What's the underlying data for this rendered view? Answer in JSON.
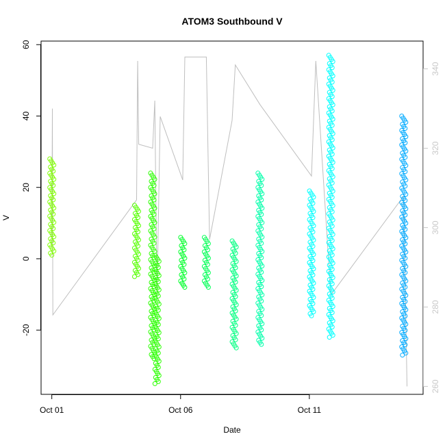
{
  "chart_data": {
    "type": "scatter",
    "title": "ATOM3 Southbound V",
    "xlabel": "Date",
    "ylabel": "V",
    "xlim": [
      "2023-09-30T14:00",
      "2023-10-15T10:00"
    ],
    "ylim": [
      -38,
      61
    ],
    "y2lim": [
      258,
      347
    ],
    "x_ticks": [
      {
        "date": "2023-10-01",
        "label": "Oct 01"
      },
      {
        "date": "2023-10-06",
        "label": "Oct 06"
      },
      {
        "date": "2023-10-11",
        "label": "Oct 11"
      }
    ],
    "y_ticks": [
      -20,
      0,
      20,
      40,
      60
    ],
    "y_tick_labels": [
      "-20",
      "0",
      "20",
      "40",
      "60"
    ],
    "y2_ticks": [
      260,
      280,
      300,
      320,
      340
    ],
    "y2_tick_labels": [
      "260",
      "280",
      "300",
      "320",
      "340"
    ],
    "grid": false,
    "legend": "none",
    "colors": {
      "line": "#bebebe",
      "right_axis": "#c8c8c8",
      "pink": "#ff9999"
    },
    "series": [
      {
        "date": "2023-10-01T00:00",
        "min": 1,
        "max": 28,
        "color": "#80ff00"
      },
      {
        "date": "2023-10-04T07:00",
        "min": -5,
        "max": 15,
        "color": "#55ff00"
      },
      {
        "date": "2023-10-04T22:00",
        "min": -28,
        "max": 24,
        "color": "#2bff00"
      },
      {
        "date": "2023-10-05T02:00",
        "min": -35,
        "max": 1,
        "color": "#2bff00"
      },
      {
        "date": "2023-10-06T02:00",
        "min": -8,
        "max": 6,
        "color": "#00ff2b"
      },
      {
        "date": "2023-10-07T00:00",
        "min": -8,
        "max": 6,
        "color": "#00ff55"
      },
      {
        "date": "2023-10-08T02:00",
        "min": -25,
        "max": 5,
        "color": "#00ff80"
      },
      {
        "date": "2023-10-09T02:00",
        "min": -24,
        "max": 24,
        "color": "#00ffaa"
      },
      {
        "date": "2023-10-11T02:00",
        "min": -16,
        "max": 19,
        "color": "#00ffff"
      },
      {
        "date": "2023-10-11T20:00",
        "min": -22,
        "max": 57,
        "color": "#00ffff"
      },
      {
        "date": "2023-10-14T16:00",
        "min": -27,
        "max": 40,
        "color": "#00aaff"
      }
    ],
    "secondary_line": [
      {
        "date": "2023-10-01T00:00",
        "v": 295
      },
      {
        "date": "2023-10-01T00:30",
        "v": 330
      },
      {
        "date": "2023-10-01T01:00",
        "v": 278
      },
      {
        "date": "2023-10-04T07:00",
        "v": 307
      },
      {
        "date": "2023-10-04T08:00",
        "v": 342
      },
      {
        "date": "2023-10-04T09:00",
        "v": 321
      },
      {
        "date": "2023-10-04T22:00",
        "v": 320
      },
      {
        "date": "2023-10-05T00:00",
        "v": 332
      },
      {
        "date": "2023-10-05T02:00",
        "v": 282
      },
      {
        "date": "2023-10-05T05:00",
        "v": 328
      },
      {
        "date": "2023-10-06T02:00",
        "v": 312
      },
      {
        "date": "2023-10-06T04:00",
        "v": 343
      },
      {
        "date": "2023-10-07T00:00",
        "v": 343
      },
      {
        "date": "2023-10-07T03:00",
        "v": 297
      },
      {
        "date": "2023-10-08T00:00",
        "v": 327
      },
      {
        "date": "2023-10-08T03:00",
        "v": 341
      },
      {
        "date": "2023-10-09T02:00",
        "v": 331
      },
      {
        "date": "2023-10-11T02:00",
        "v": 313
      },
      {
        "date": "2023-10-11T06:00",
        "v": 342
      },
      {
        "date": "2023-10-11T20:00",
        "v": 283
      },
      {
        "date": "2023-10-14T16:00",
        "v": 308
      },
      {
        "date": "2023-10-14T19:00",
        "v": 260
      }
    ]
  }
}
